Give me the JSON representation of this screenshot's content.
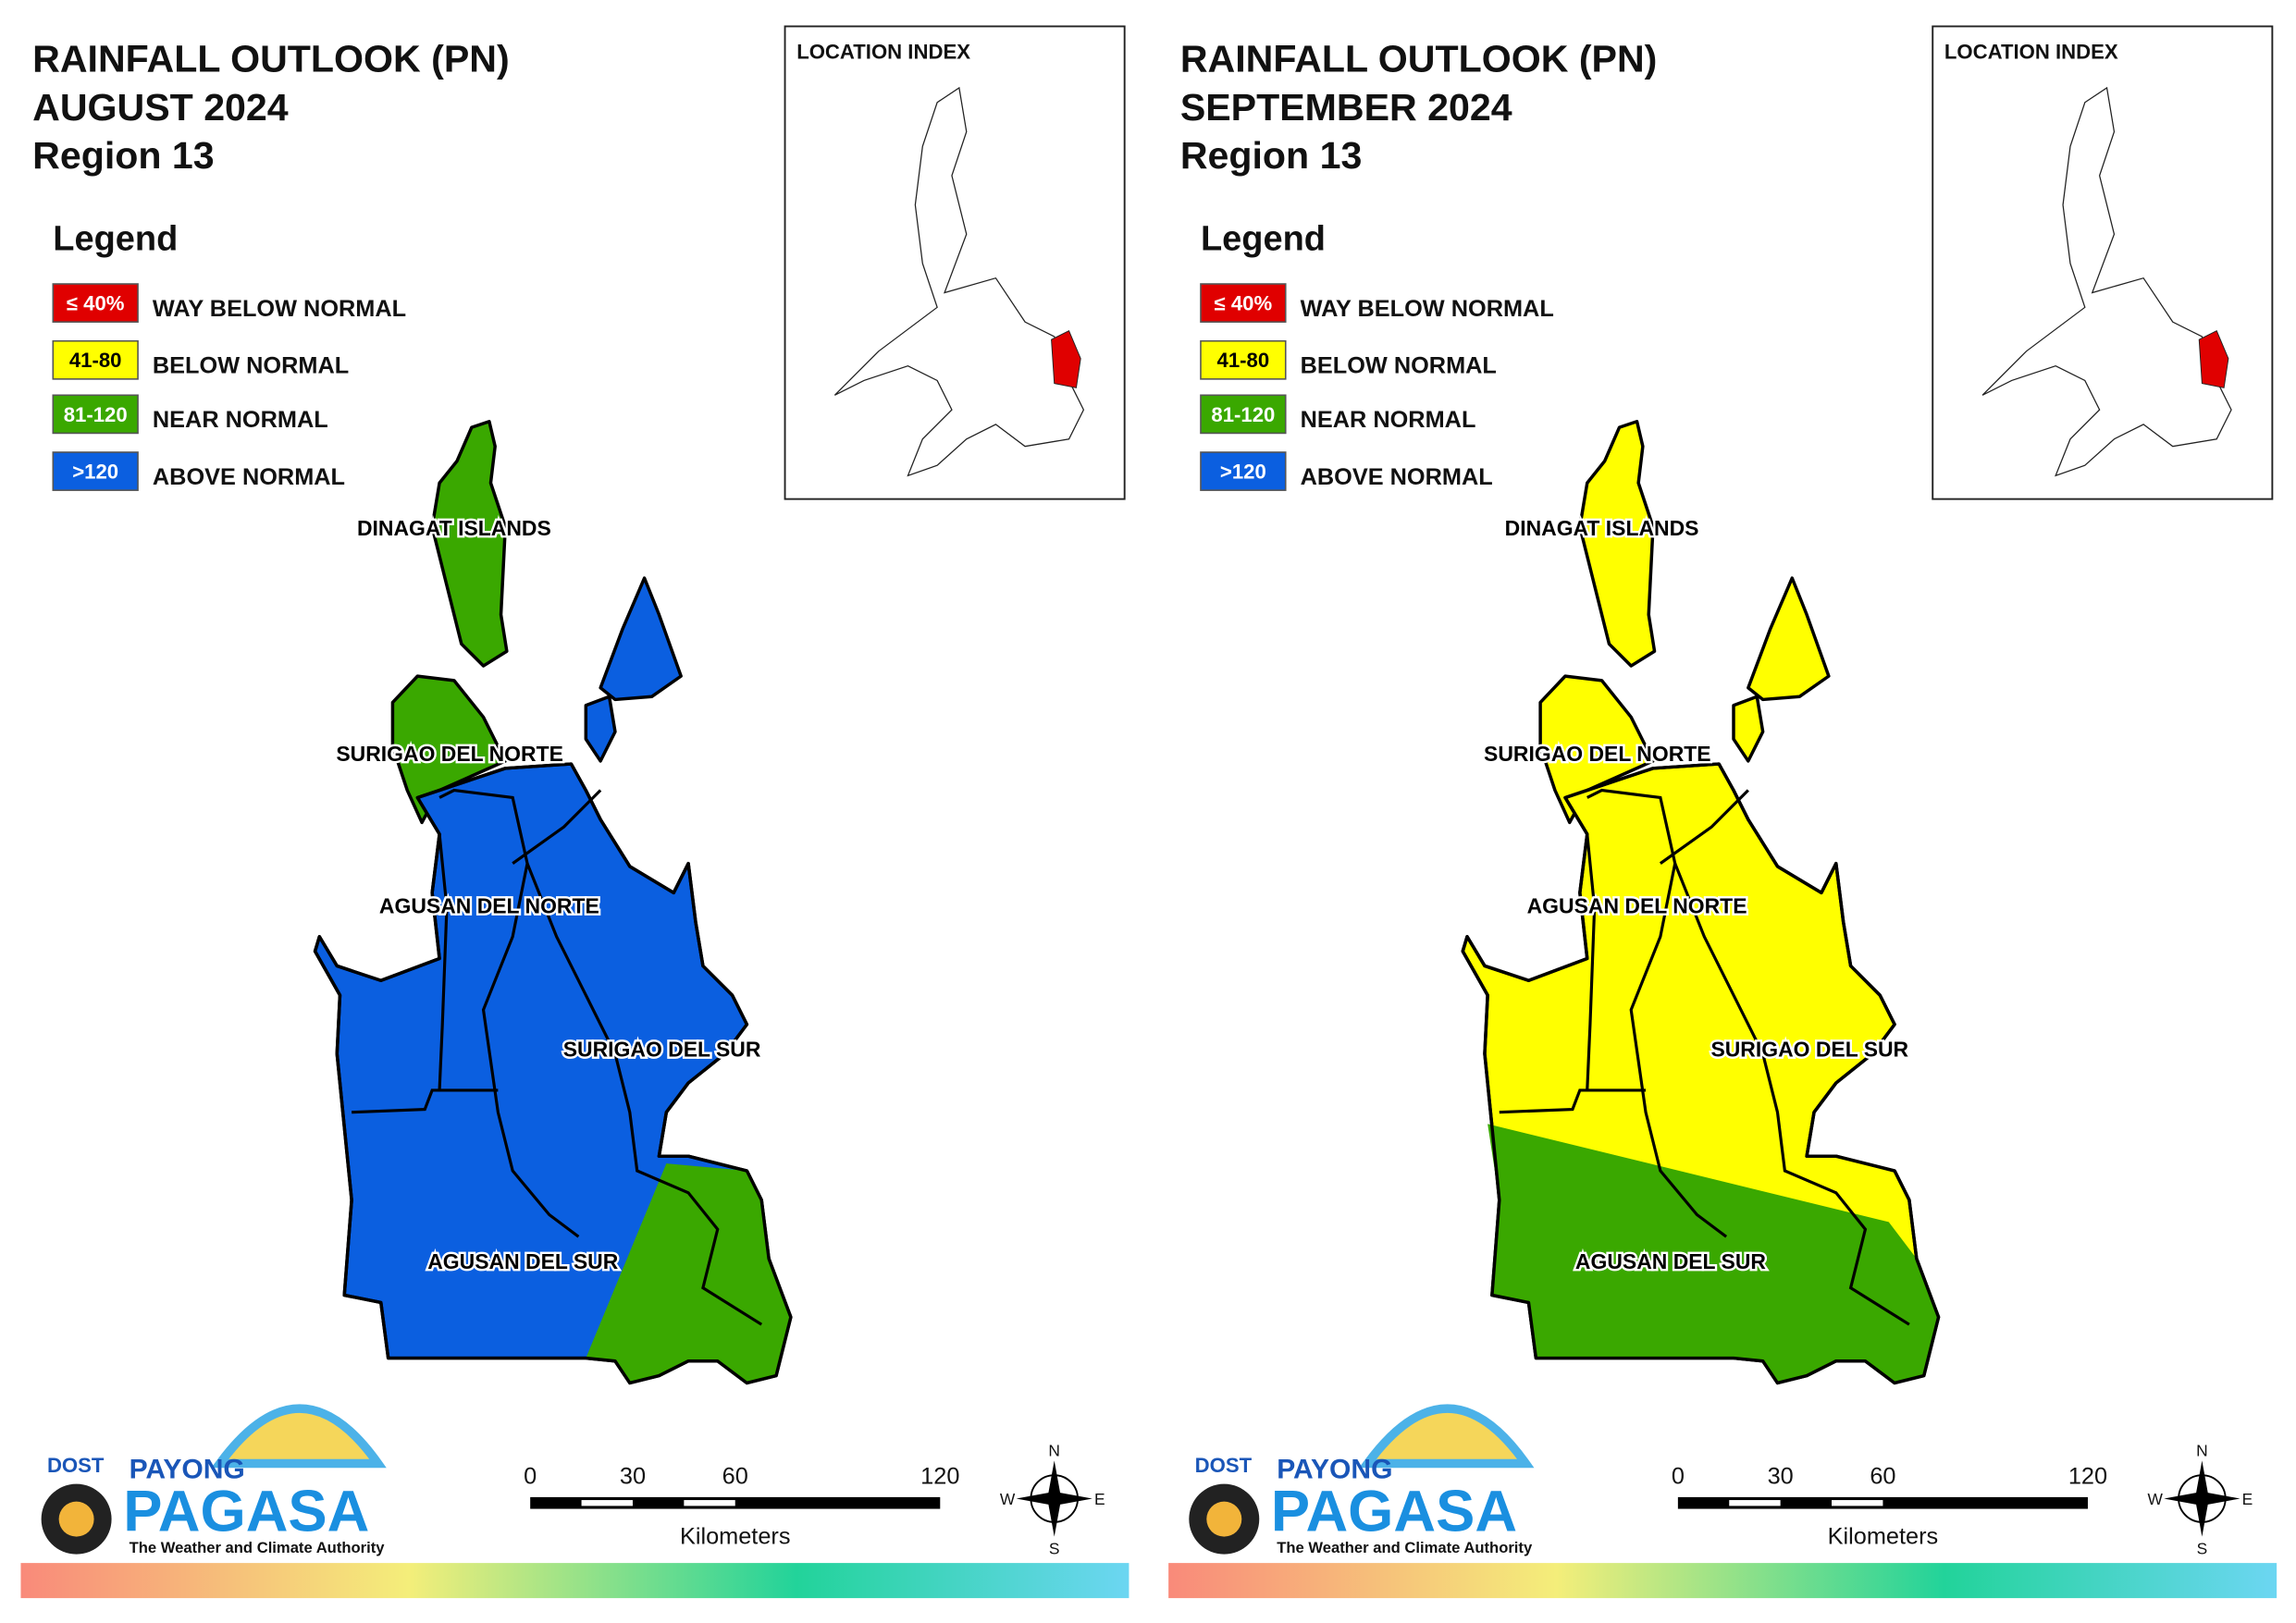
{
  "panels": [
    {
      "title": [
        "RAINFALL OUTLOOK (PN)",
        "AUGUST 2024",
        "Region 13"
      ],
      "legend_title": "Legend",
      "legend": [
        {
          "code": "≤ 40%",
          "label": "WAY BELOW NORMAL"
        },
        {
          "code": "41-80",
          "label": "BELOW NORMAL"
        },
        {
          "code": "81-120",
          "label": "NEAR NORMAL"
        },
        {
          "code": ">120",
          "label": "ABOVE NORMAL"
        }
      ],
      "inset_title": "LOCATION INDEX",
      "regions": [
        "DINAGAT ISLANDS",
        "SURIGAO DEL NORTE",
        "AGUSAN DEL NORTE",
        "SURIGAO DEL SUR",
        "AGUSAN DEL SUR"
      ],
      "logo": {
        "dost": "DOST",
        "payong": "PAYONG",
        "pagasa": "PAGASA",
        "tagline": "The Weather and Climate Authority"
      },
      "scale": {
        "ticks": [
          0,
          30,
          60,
          120
        ],
        "unit": "Kilometers"
      },
      "compass": {
        "n": "N",
        "e": "E",
        "s": "S",
        "w": "W"
      }
    },
    {
      "title": [
        "RAINFALL OUTLOOK (PN)",
        "SEPTEMBER 2024",
        "Region 13"
      ],
      "legend_title": "Legend",
      "legend": [
        {
          "code": "≤ 40%",
          "label": "WAY BELOW NORMAL"
        },
        {
          "code": "41-80",
          "label": "BELOW NORMAL"
        },
        {
          "code": "81-120",
          "label": "NEAR NORMAL"
        },
        {
          "code": ">120",
          "label": "ABOVE NORMAL"
        }
      ],
      "inset_title": "LOCATION INDEX",
      "regions": [
        "DINAGAT ISLANDS",
        "SURIGAO DEL NORTE",
        "AGUSAN DEL NORTE",
        "SURIGAO DEL SUR",
        "AGUSAN DEL SUR"
      ],
      "logo": {
        "dost": "DOST",
        "payong": "PAYONG",
        "pagasa": "PAGASA",
        "tagline": "The Weather and Climate Authority"
      },
      "scale": {
        "ticks": [
          0,
          30,
          60,
          120
        ],
        "unit": "Kilometers"
      },
      "compass": {
        "n": "N",
        "e": "E",
        "s": "S",
        "w": "W"
      }
    }
  ]
}
